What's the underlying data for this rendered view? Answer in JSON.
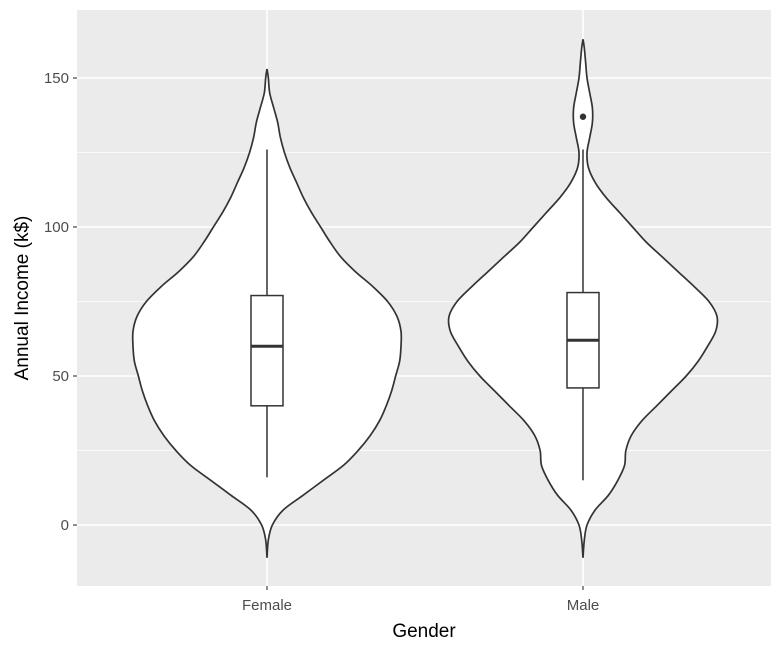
{
  "chart_data": {
    "type": "violin",
    "xlabel": "Gender",
    "ylabel": "Annual Income (k$)",
    "categories": [
      "Female",
      "Male"
    ],
    "ylim": [
      -20,
      173
    ],
    "yticks": [
      0,
      50,
      100,
      150
    ],
    "grid": true,
    "legend": "none",
    "colors": {
      "panel": "#ebebeb",
      "grid": "#ffffff",
      "line": "#333333",
      "violin_fill": "#ffffff"
    },
    "groups": [
      {
        "name": "Female",
        "violin": {
          "ymin": -11,
          "ymax": 153,
          "y": [
            -11,
            -5,
            0,
            5,
            10,
            15,
            20,
            25,
            30,
            35,
            40,
            45,
            50,
            55,
            60,
            65,
            70,
            75,
            80,
            85,
            90,
            95,
            100,
            105,
            110,
            115,
            120,
            125,
            130,
            135,
            140,
            145,
            150,
            153
          ],
          "width": [
            0.0,
            0.01,
            0.04,
            0.12,
            0.27,
            0.42,
            0.57,
            0.68,
            0.77,
            0.84,
            0.89,
            0.93,
            0.96,
            0.99,
            1.0,
            1.0,
            0.97,
            0.9,
            0.79,
            0.66,
            0.55,
            0.47,
            0.4,
            0.33,
            0.27,
            0.22,
            0.17,
            0.13,
            0.1,
            0.08,
            0.05,
            0.02,
            0.01,
            0.0
          ]
        },
        "box": {
          "whisker_low": 16,
          "q1": 40,
          "median": 60,
          "q3": 77,
          "whisker_high": 126
        },
        "outliers": []
      },
      {
        "name": "Male",
        "violin": {
          "ymin": -11,
          "ymax": 163,
          "y": [
            -11,
            -5,
            0,
            5,
            10,
            15,
            20,
            25,
            30,
            35,
            40,
            45,
            50,
            55,
            60,
            65,
            70,
            75,
            80,
            85,
            90,
            95,
            100,
            105,
            110,
            115,
            120,
            125,
            130,
            135,
            140,
            145,
            150,
            155,
            160,
            163
          ],
          "width": [
            0.0,
            0.01,
            0.03,
            0.09,
            0.19,
            0.26,
            0.31,
            0.32,
            0.36,
            0.44,
            0.55,
            0.66,
            0.77,
            0.86,
            0.93,
            0.99,
            1.0,
            0.94,
            0.83,
            0.71,
            0.59,
            0.47,
            0.37,
            0.27,
            0.17,
            0.09,
            0.04,
            0.03,
            0.05,
            0.07,
            0.07,
            0.05,
            0.03,
            0.02,
            0.01,
            0.0
          ]
        },
        "box": {
          "whisker_low": 15,
          "q1": 46,
          "median": 62,
          "q3": 78,
          "whisker_high": 126
        },
        "outliers": [
          137
        ]
      }
    ]
  }
}
